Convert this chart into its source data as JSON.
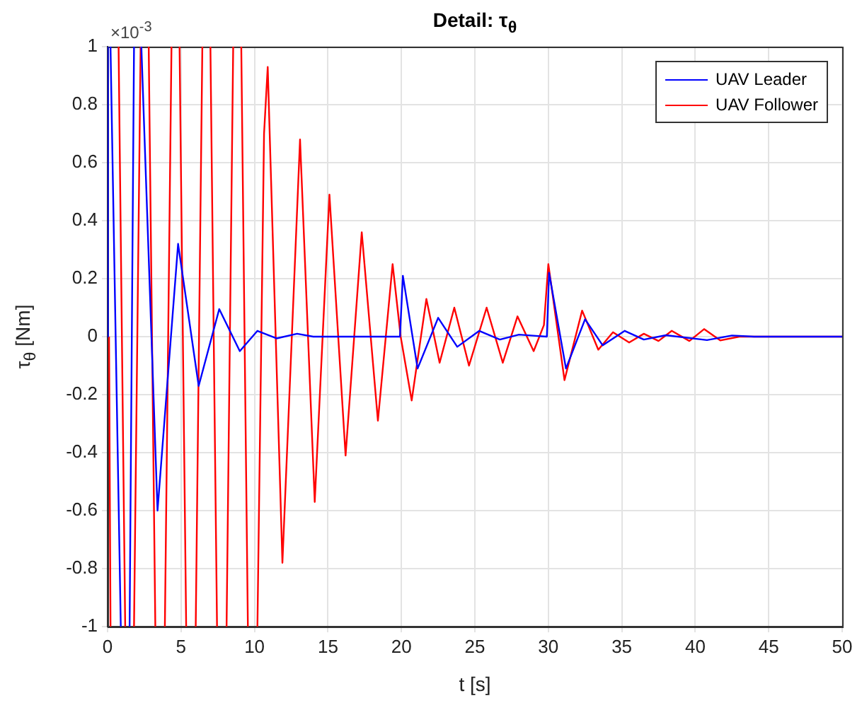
{
  "chart_data": {
    "type": "line",
    "title": "Detail: τ$_{θ}$",
    "xlabel": "t [s]",
    "ylabel": "τ$_{θ}$ [Nm]",
    "annotations": [
      "×10$^{-3}$"
    ],
    "xlim": [
      0,
      50
    ],
    "xticks": [
      0,
      5,
      10,
      15,
      20,
      25,
      30,
      35,
      40,
      45,
      50
    ],
    "ylim": [
      -1,
      1
    ],
    "yticks": [
      -1,
      -0.8,
      -0.6,
      -0.4,
      -0.2,
      0,
      0.2,
      0.4,
      0.6,
      0.8,
      1
    ],
    "grid": true,
    "legend": "top right",
    "marker": "none",
    "line_style": "solid",
    "series": [
      {
        "name": "UAV Leader",
        "color": "#0000ff",
        "x": [
          0,
          0.02,
          0.1,
          0.2,
          0.9,
          1.2,
          1.5,
          1.8,
          2.0,
          2.3,
          3.4,
          4.8,
          6.2,
          7.6,
          9.0,
          10.2,
          11.5,
          12.9,
          14,
          16,
          18,
          19.9,
          20.1,
          21.1,
          22.5,
          23.8,
          25.3,
          26.7,
          28.0,
          29.9,
          30.05,
          31.2,
          32.5,
          33.7,
          35.2,
          36.5,
          38.0,
          40.8,
          42.5,
          44,
          50
        ],
        "values": [
          0,
          1,
          null,
          1,
          -1,
          null,
          -1,
          1,
          null,
          1,
          -0.6,
          0.32,
          -0.17,
          0.095,
          -0.05,
          0.02,
          -0.006,
          0.01,
          0,
          0,
          0,
          0,
          0.21,
          -0.11,
          0.065,
          -0.035,
          0.02,
          -0.01,
          0.007,
          0,
          0.22,
          -0.11,
          0.06,
          -0.03,
          0.02,
          -0.01,
          0.005,
          -0.012,
          0.004,
          0,
          0
        ]
      },
      {
        "name": "UAV Follower",
        "color": "#ff0000",
        "x": [
          0.1,
          0.2,
          0.3,
          0.75,
          1.2,
          1.5,
          1.8,
          2.25,
          2.5,
          2.8,
          3.25,
          3.6,
          3.9,
          4.35,
          4.6,
          4.9,
          5.35,
          5.7,
          6.0,
          6.45,
          6.7,
          7.0,
          7.45,
          7.8,
          8.1,
          8.55,
          8.8,
          9.1,
          9.55,
          9.9,
          10.2,
          10.65,
          10.9,
          11.9,
          13.1,
          14.1,
          15.1,
          16.2,
          17.3,
          18.4,
          19.4,
          19.95,
          20.7,
          21.7,
          22.6,
          23.6,
          24.6,
          25.8,
          26.9,
          27.9,
          29.0,
          29.7,
          30.0,
          31.1,
          32.3,
          33.4,
          34.4,
          35.5,
          36.5,
          37.5,
          38.4,
          39.6,
          40.6,
          41.7,
          43,
          50
        ],
        "values": [
          0,
          -1,
          null,
          1,
          -1,
          null,
          -1,
          1,
          null,
          1,
          -1,
          null,
          -1,
          1,
          null,
          1,
          -1,
          null,
          -1,
          1,
          null,
          1,
          -1,
          null,
          -1,
          1,
          null,
          1,
          -1,
          null,
          -1,
          0.7,
          0.93,
          -0.78,
          0.68,
          -0.57,
          0.49,
          -0.41,
          0.36,
          -0.29,
          0.25,
          0,
          -0.22,
          0.13,
          -0.09,
          0.1,
          -0.1,
          0.1,
          -0.09,
          0.07,
          -0.05,
          0.04,
          0.25,
          -0.15,
          0.09,
          -0.045,
          0.015,
          -0.02,
          0.01,
          -0.015,
          0.02,
          -0.015,
          0.026,
          -0.013,
          0,
          0
        ]
      }
    ]
  }
}
